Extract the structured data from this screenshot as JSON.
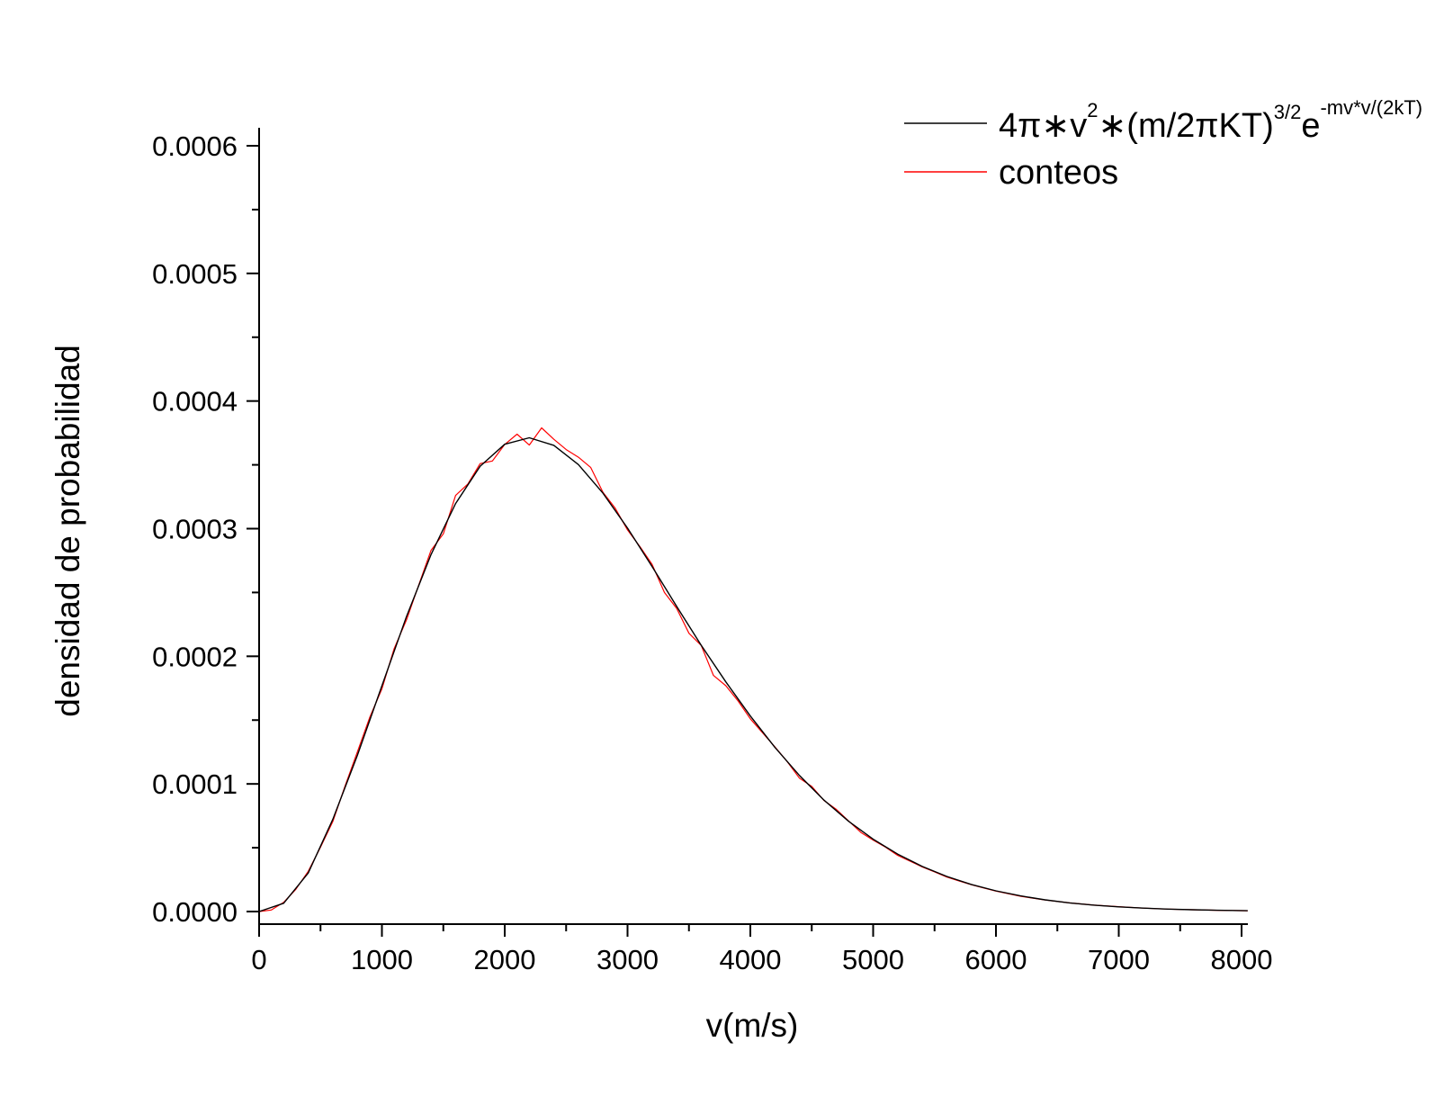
{
  "chart_data": {
    "type": "line",
    "title": "",
    "xlabel": "v(m/s)",
    "ylabel": "densidad de probabilidad",
    "xlim": [
      0,
      8050
    ],
    "ylim": [
      -1e-05,
      0.00061
    ],
    "x_ticks": [
      0,
      1000,
      2000,
      3000,
      4000,
      5000,
      6000,
      7000,
      8000
    ],
    "x_tick_labels": [
      "0",
      "1000",
      "2000",
      "3000",
      "4000",
      "5000",
      "6000",
      "7000",
      "8000"
    ],
    "y_ticks": [
      0.0,
      0.0001,
      0.0002,
      0.0003,
      0.0004,
      0.0005,
      0.0006
    ],
    "y_tick_labels": [
      "0.0000",
      "0.0001",
      "0.0002",
      "0.0003",
      "0.0004",
      "0.0005",
      "0.0006"
    ],
    "grid": false,
    "legend_position": "top-right",
    "legend": {
      "fit_label_parts": {
        "base": "4π∗v",
        "sup1": "2",
        "mid": "∗(m/2πKT)",
        "sup2": "3/2",
        "e": "e",
        "sup3": "-mv*v/(2kT)"
      },
      "counts_label": "conteos"
    },
    "series": [
      {
        "name": "4π∗v²∗(m/2πKT)^3/2 e^-mv*v/(2kT)",
        "color": "#000000",
        "x": [
          0,
          200,
          400,
          600,
          800,
          1000,
          1200,
          1400,
          1600,
          1800,
          2000,
          2200,
          2400,
          2600,
          2800,
          3000,
          3200,
          3400,
          3600,
          3800,
          4000,
          4200,
          4400,
          4600,
          4800,
          5000,
          5200,
          5400,
          5600,
          5800,
          6000,
          6200,
          6400,
          6600,
          6800,
          7000,
          7200,
          7400,
          7600,
          7800,
          8050
        ],
        "y": [
          0.0,
          6.5e-06,
          3.02e-05,
          7.22e-05,
          0.0001223,
          0.0001769,
          0.0002311,
          0.0002797,
          0.0003197,
          0.0003489,
          0.0003661,
          0.0003712,
          0.0003653,
          0.0003502,
          0.0003278,
          0.0003004,
          0.0002703,
          0.0002391,
          0.0002086,
          0.00018,
          0.0001532,
          0.0001286,
          0.0001066,
          8.73e-05,
          7.07e-05,
          5.67e-05,
          4.5e-05,
          3.53e-05,
          2.75e-05,
          2.12e-05,
          1.62e-05,
          1.23e-05,
          9.2e-06,
          6.8e-06,
          5e-06,
          3.7e-06,
          2.7e-06,
          1.9e-06,
          1.4e-06,
          1e-06,
          6e-07
        ]
      },
      {
        "name": "conteos",
        "color": "#ff0000",
        "x": [
          0,
          100,
          200,
          300,
          400,
          500,
          600,
          700,
          800,
          900,
          1000,
          1100,
          1200,
          1300,
          1400,
          1500,
          1600,
          1700,
          1800,
          1900,
          2000,
          2100,
          2200,
          2300,
          2400,
          2500,
          2600,
          2700,
          2800,
          2900,
          3000,
          3100,
          3200,
          3300,
          3400,
          3500,
          3600,
          3700,
          3800,
          3900,
          4000,
          4100,
          4200,
          4300,
          4400,
          4500,
          4600,
          4700,
          4800,
          4900,
          5000,
          5100,
          5200,
          5300,
          5400,
          5500,
          5600,
          5700,
          5800,
          5900,
          6000,
          6200,
          6400,
          6600,
          6800,
          7000,
          7200,
          7400,
          7600,
          7800,
          8050
        ],
        "y": [
          0.0,
          1.2e-06,
          7.2e-06,
          1.75e-05,
          3.15e-05,
          5.05e-05,
          7.05e-05,
          9.85e-05,
          0.000125,
          0.000152,
          0.0001745,
          0.000206,
          0.0002285,
          0.000256,
          0.000283,
          0.000296,
          0.000326,
          0.000335,
          0.000351,
          0.000353,
          0.000366,
          0.000374,
          0.0003655,
          0.000379,
          0.00037,
          0.000362,
          0.000356,
          0.000348,
          0.0003285,
          0.000316,
          0.000299,
          0.000286,
          0.000272,
          0.00025,
          0.0002375,
          0.000218,
          0.0002085,
          0.000185,
          0.000177,
          0.000165,
          0.000151,
          0.00014,
          0.000129,
          0.0001175,
          0.0001045,
          9.8e-05,
          8.7e-05,
          8e-05,
          7.1e-05,
          6.2e-05,
          5.6e-05,
          5.05e-05,
          4.4e-05,
          3.95e-05,
          3.5e-05,
          3.1e-05,
          2.7e-05,
          2.4e-05,
          2.1e-05,
          1.85e-05,
          1.6e-05,
          1.2e-05,
          9e-06,
          6.8e-06,
          5e-06,
          3.8e-06,
          2.7e-06,
          1.9e-06,
          1.4e-06,
          1e-06,
          6e-07
        ]
      }
    ]
  }
}
